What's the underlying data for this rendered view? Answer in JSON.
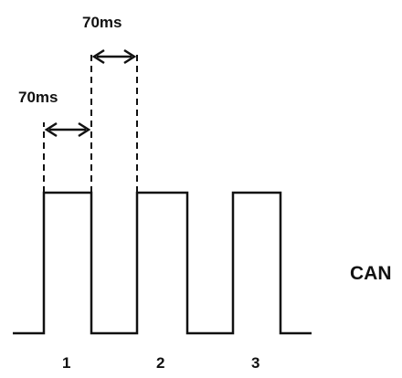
{
  "timing": {
    "interval_1": "70ms",
    "interval_2": "70ms"
  },
  "signal": {
    "name": "CAN"
  },
  "pulses": [
    {
      "label": "1"
    },
    {
      "label": "2"
    },
    {
      "label": "3"
    }
  ],
  "colors": {
    "line": "#111111",
    "background": "#ffffff"
  }
}
